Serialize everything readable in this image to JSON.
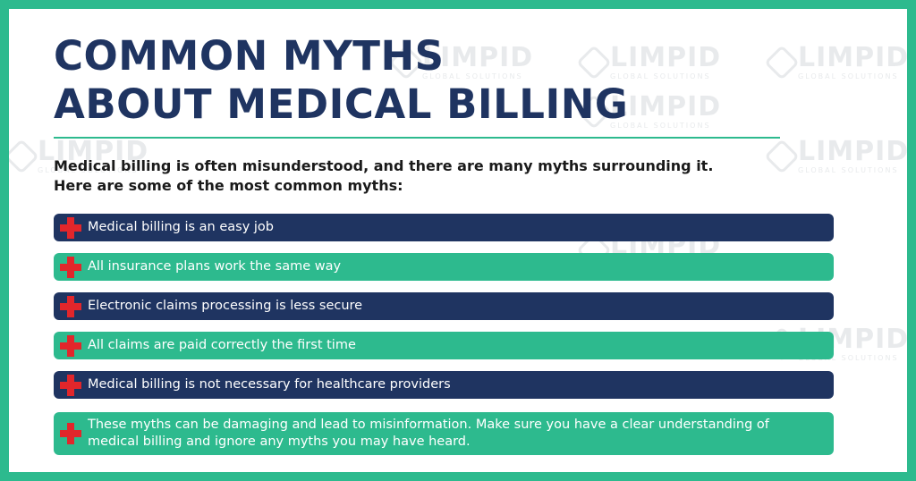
{
  "title": {
    "line1": "COMMON MYTHS",
    "line2": "ABOUT MEDICAL BILLING"
  },
  "intro": {
    "line1": "Medical billing is often misunderstood, and there are many myths surrounding it.",
    "line2": "Here are some of the most common myths:"
  },
  "myths": [
    {
      "text": "Medical billing is an easy job",
      "style": "dark",
      "icon": "red-cross-icon"
    },
    {
      "text": "All insurance plans work the same way",
      "style": "green",
      "icon": "red-cross-icon"
    },
    {
      "text": "Electronic claims processing is less secure",
      "style": "dark",
      "icon": "red-cross-icon"
    },
    {
      "text": "All claims are paid correctly the first time",
      "style": "green",
      "icon": "red-cross-icon"
    },
    {
      "text": "Medical billing is not necessary for healthcare providers",
      "style": "dark",
      "icon": "red-cross-icon"
    }
  ],
  "conclusion": {
    "line1": "These myths can be damaging and lead to misinformation. Make sure you have a clear understanding of",
    "line2": "medical billing and ignore any myths you may have heard.",
    "icon": "red-cross-icon"
  },
  "watermark": {
    "brand": "LIMPID",
    "tagline": "GLOBAL SOLUTIONS"
  },
  "colors": {
    "navy": "#1f3461",
    "green": "#2dba8e",
    "cross_red": "#e2262b",
    "background": "#ffffff"
  }
}
